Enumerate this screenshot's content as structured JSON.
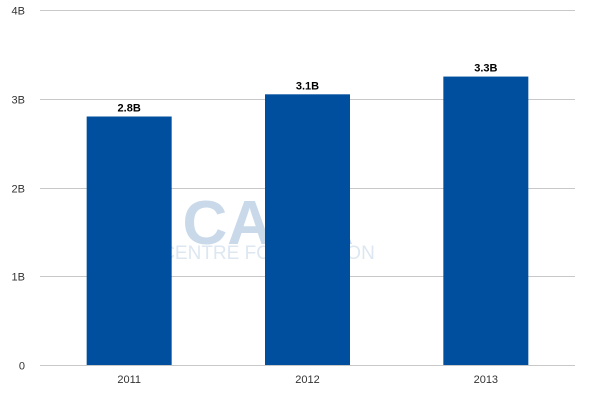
{
  "chart_data": {
    "type": "bar",
    "title": "",
    "xlabel": "",
    "ylabel": "",
    "categories": [
      "2011",
      "2012",
      "2013"
    ],
    "values": [
      2.8,
      3.05,
      3.25
    ],
    "data_labels": [
      "2.8B",
      "3.1B",
      "3.3B"
    ],
    "ylim": [
      0,
      4
    ],
    "y_ticks": [
      {
        "value": 0,
        "label": "0"
      },
      {
        "value": 1,
        "label": "1B"
      },
      {
        "value": 2,
        "label": "2B"
      },
      {
        "value": 3,
        "label": "3B"
      },
      {
        "value": 4,
        "label": "4B"
      }
    ],
    "grid": true,
    "legend": "none",
    "bar_color": "#004f9e",
    "gridline_color": "#c8c8c8"
  },
  "watermark": {
    "logo_text": "CAPA",
    "tagline": "CENTRE FOR AVIATION"
  }
}
